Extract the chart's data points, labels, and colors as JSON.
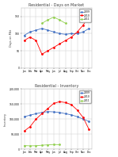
{
  "months": [
    "Jan",
    "Feb",
    "Mar",
    "Apr",
    "May",
    "Jun",
    "Jul",
    "Aug",
    "Sep",
    "Oct",
    "Nov",
    "Dec"
  ],
  "chart1_title": "Residential - Days on Market",
  "chart1_ylabel": "Days on Mkt",
  "chart1_ylim": [
    0,
    175
  ],
  "chart1_yticks": [
    0,
    50,
    100,
    150
  ],
  "dom_2009": [
    95,
    105,
    110,
    115,
    110,
    105,
    100,
    98,
    100,
    100,
    105,
    115
  ],
  "dom_2010": [
    80,
    90,
    80,
    40,
    50,
    60,
    70,
    80,
    90,
    105,
    125,
    150
  ],
  "dom_2011_x": [
    3,
    4,
    5,
    6,
    7
  ],
  "dom_2011_y": [
    130,
    140,
    148,
    140,
    130
  ],
  "chart2_title": "Residential - Inventory",
  "chart2_ylabel": "Inventory",
  "chart2_ylim": [
    0,
    200000
  ],
  "chart2_yticks": [
    0,
    50000,
    100000,
    150000,
    200000
  ],
  "inv_2009": [
    108000,
    113000,
    118000,
    122000,
    125000,
    124000,
    122000,
    118000,
    114000,
    108000,
    100000,
    92000
  ],
  "inv_2010": [
    60000,
    75000,
    100000,
    118000,
    135000,
    152000,
    158000,
    155000,
    148000,
    130000,
    105000,
    65000
  ],
  "inv_2011_x": [
    0,
    1,
    2,
    3,
    4,
    5,
    6
  ],
  "inv_2011_y": [
    12000,
    11000,
    11500,
    13000,
    14500,
    15500,
    15000
  ],
  "color_2009": "#4472c4",
  "color_2010": "#ff0000",
  "color_2011": "#92d050",
  "legend_labels": [
    "2009",
    "2010",
    "2011"
  ],
  "bg_color": "#ffffff",
  "grid_color": "#c8c8c8",
  "title_color": "#404040"
}
